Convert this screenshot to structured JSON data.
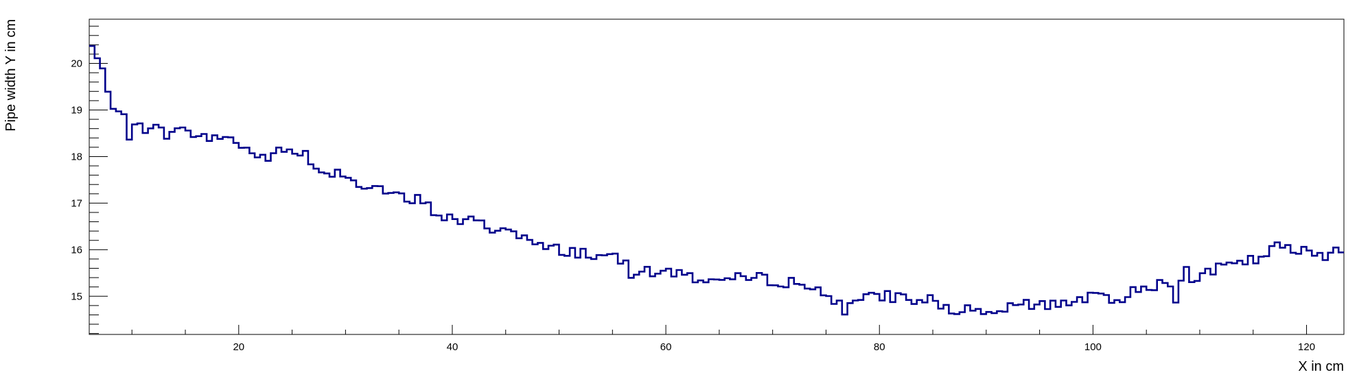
{
  "chart_data": {
    "type": "line",
    "title": "",
    "xlabel": "X in cm",
    "ylabel": "Pipe width Y in cm",
    "xlim": [
      6.0,
      123.5
    ],
    "ylim": [
      14.18,
      20.95
    ],
    "x_ticks": [
      20,
      40,
      60,
      80,
      100,
      120
    ],
    "y_ticks": [
      15,
      16,
      17,
      18,
      19,
      20
    ],
    "grid": false,
    "legend": "none",
    "step": true,
    "bin_width": 0.5,
    "line_color": "#00008b",
    "series": [
      {
        "x": [
          6,
          8,
          10,
          12,
          14,
          15,
          16,
          18,
          20,
          22,
          24,
          26,
          27,
          28,
          30,
          31,
          32,
          34,
          36,
          37,
          38,
          40,
          42,
          44,
          46,
          48,
          50,
          52,
          54,
          56,
          58,
          60,
          62,
          64,
          66,
          68,
          70,
          72,
          74,
          76,
          78,
          80,
          82,
          84,
          86,
          88,
          90,
          92,
          94,
          96,
          98,
          100,
          102,
          104,
          106,
          108,
          110,
          112,
          114,
          116,
          117.5,
          118,
          120,
          122,
          123.5
        ],
        "values": [
          20.0,
          19.0,
          18.65,
          18.6,
          18.45,
          18.75,
          18.35,
          18.45,
          18.3,
          17.95,
          18.1,
          18.15,
          17.75,
          17.7,
          17.65,
          17.45,
          17.4,
          17.25,
          17.0,
          17.1,
          16.85,
          16.65,
          16.6,
          16.45,
          16.4,
          16.05,
          16.0,
          15.95,
          15.85,
          15.75,
          15.5,
          15.55,
          15.45,
          15.35,
          15.35,
          15.4,
          15.35,
          15.3,
          15.15,
          14.9,
          14.9,
          15.0,
          15.0,
          14.85,
          14.75,
          14.7,
          14.55,
          14.75,
          14.8,
          14.85,
          14.9,
          15.0,
          14.85,
          15.2,
          15.25,
          15.3,
          15.45,
          15.6,
          15.7,
          15.85,
          16.1,
          16.0,
          15.95,
          15.9,
          16.1
        ]
      }
    ]
  }
}
